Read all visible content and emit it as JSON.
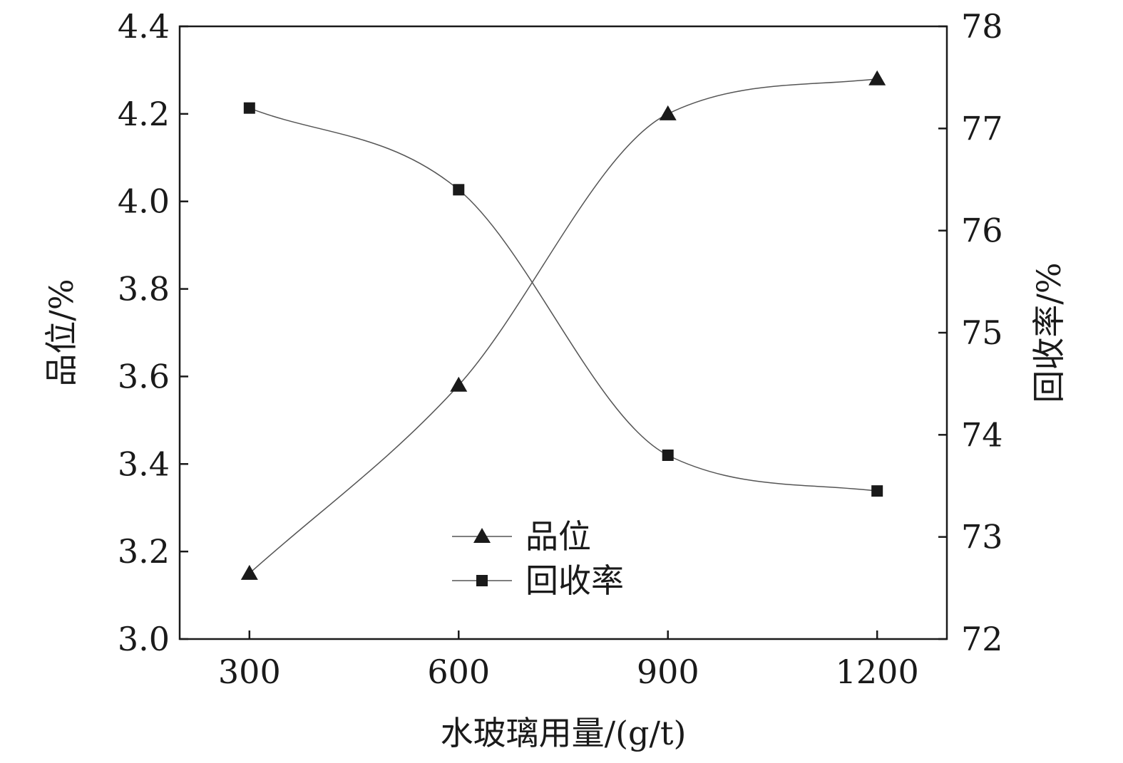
{
  "chart_data": {
    "type": "line",
    "x": [
      300,
      600,
      900,
      1200
    ],
    "xlabel": "水玻璃用量/(g/t)",
    "xlim": [
      200,
      1300
    ],
    "x_ticks": [
      "300",
      "600",
      "900",
      "1200"
    ],
    "ylabel_left": "品位/%",
    "ylim_left": [
      3.0,
      4.4
    ],
    "y_ticks_left": [
      "3.0",
      "3.2",
      "3.4",
      "3.6",
      "3.8",
      "4.0",
      "4.2",
      "4.4"
    ],
    "ylabel_right": "回收率/%",
    "ylim_right": [
      72,
      78
    ],
    "y_ticks_right": [
      "72",
      "73",
      "74",
      "75",
      "76",
      "77",
      "78"
    ],
    "series": [
      {
        "name": "品位",
        "axis": "left",
        "marker": "triangle",
        "values": [
          3.15,
          3.58,
          4.2,
          4.28
        ]
      },
      {
        "name": "回收率",
        "axis": "right",
        "marker": "square",
        "values": [
          77.2,
          76.4,
          73.8,
          73.45
        ]
      }
    ],
    "legend_position": "center-bottom",
    "grid": false,
    "line_color": "#555555",
    "marker_color": "#1a1a1a"
  }
}
